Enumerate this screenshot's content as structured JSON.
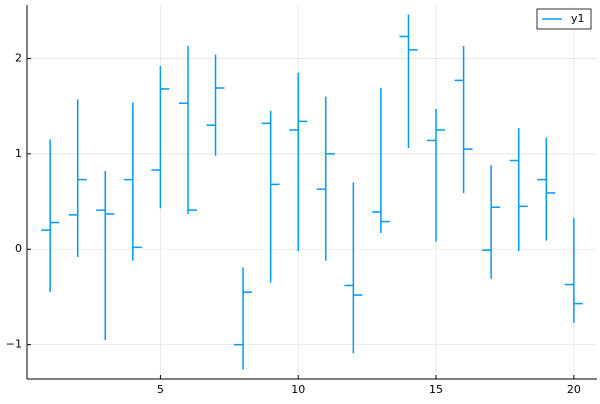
{
  "chart_data": {
    "type": "ohlc",
    "x": [
      1,
      2,
      3,
      4,
      5,
      6,
      7,
      8,
      9,
      10,
      11,
      12,
      13,
      14,
      15,
      16,
      17,
      18,
      19,
      20
    ],
    "series": [
      {
        "name": "y1",
        "color": "#009af9",
        "open": [
          0.2,
          0.36,
          0.41,
          0.73,
          0.83,
          1.53,
          1.3,
          -1.0,
          1.32,
          1.25,
          0.63,
          -0.38,
          0.39,
          2.23,
          1.14,
          1.77,
          -0.01,
          0.93,
          0.73,
          -0.37
        ],
        "high": [
          1.15,
          1.57,
          0.82,
          1.54,
          1.92,
          2.13,
          2.04,
          -0.19,
          1.45,
          1.85,
          1.6,
          0.7,
          1.69,
          2.46,
          1.47,
          2.13,
          0.88,
          1.27,
          1.17,
          0.33
        ],
        "low": [
          -0.45,
          -0.08,
          -0.95,
          -0.12,
          0.43,
          0.37,
          0.98,
          -1.26,
          -0.35,
          -0.02,
          -0.12,
          -1.09,
          0.17,
          1.06,
          0.08,
          0.59,
          -0.31,
          -0.02,
          0.09,
          -0.77
        ],
        "close": [
          0.28,
          0.73,
          0.37,
          0.02,
          1.68,
          0.41,
          1.69,
          -0.45,
          0.68,
          1.34,
          1.0,
          -0.48,
          0.29,
          2.09,
          1.25,
          1.05,
          0.44,
          0.45,
          0.59,
          -0.57
        ]
      }
    ],
    "xlim": [
      0.16,
      20.84
    ],
    "ylim": [
      -1.36,
      2.56
    ],
    "xticks": [
      5,
      10,
      15,
      20
    ],
    "yticks": [
      {
        "value": -1,
        "label": "−1"
      },
      0,
      1,
      2
    ],
    "grid": true,
    "legend": "top-right"
  }
}
